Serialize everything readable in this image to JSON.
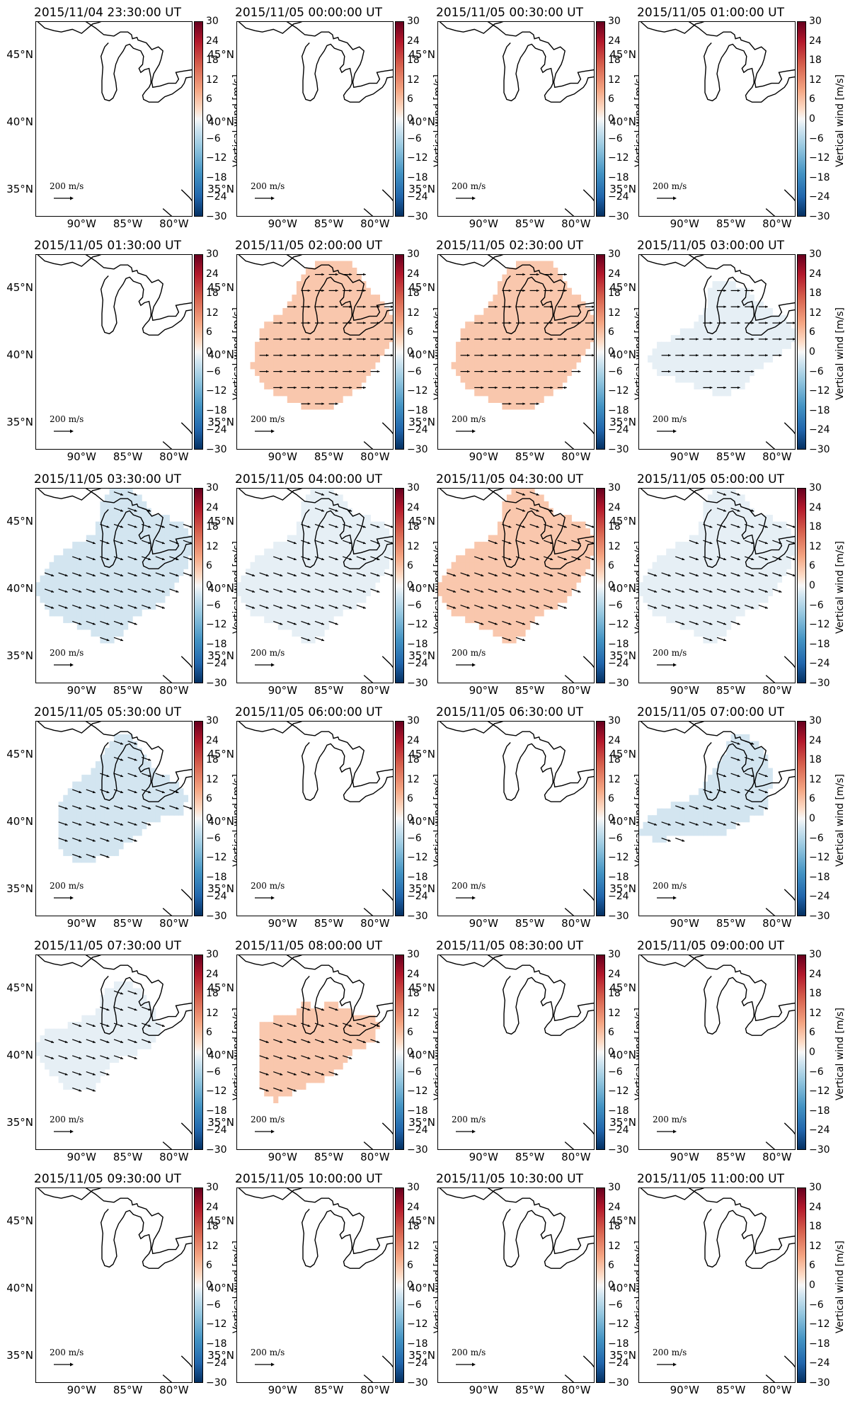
{
  "figure": {
    "colorbar_label": "Vertical wind [m/s]",
    "colorbar_ticks": [
      "30",
      "24",
      "18",
      "12",
      "6",
      "0",
      "−6",
      "−12",
      "−18",
      "−24",
      "−30"
    ],
    "lat_labels": [
      "45°N",
      "40°N",
      "35°N"
    ],
    "lon_labels": [
      "90°W",
      "85°W",
      "80°W"
    ],
    "reference_vector": "200 m/s",
    "colors": {
      "positive_weak": "#f9c7ad",
      "negative_weak_light": "#e6eff5",
      "negative_weak": "#d3e5f0"
    }
  },
  "chart_data": {
    "type": "heatmap",
    "variable": "Vertical wind [m/s]",
    "colorbar_range": [
      -30,
      30
    ],
    "x_axis": {
      "range_deg": [
        -95,
        -78
      ],
      "ticks": [
        "90°W",
        "85°W",
        "80°W"
      ]
    },
    "y_axis": {
      "range_deg": [
        33,
        47.5
      ],
      "ticks": [
        "45°N",
        "40°N",
        "35°N"
      ]
    },
    "panels": [
      {
        "title": "2015/11/04 23:30:00 UT",
        "field": "none",
        "value_ms": null
      },
      {
        "title": "2015/11/05 00:00:00 UT",
        "field": "none",
        "value_ms": null
      },
      {
        "title": "2015/11/05 00:30:00 UT",
        "field": "none",
        "value_ms": null
      },
      {
        "title": "2015/11/05 01:00:00 UT",
        "field": "none",
        "value_ms": null
      },
      {
        "title": "2015/11/05 01:30:00 UT",
        "field": "none",
        "value_ms": null
      },
      {
        "title": "2015/11/05 02:00:00 UT",
        "field": "A",
        "value_ms": 4
      },
      {
        "title": "2015/11/05 02:30:00 UT",
        "field": "A",
        "value_ms": 4
      },
      {
        "title": "2015/11/05 03:00:00 UT",
        "field": "B",
        "value_ms": -1
      },
      {
        "title": "2015/11/05 03:30:00 UT",
        "field": "C",
        "value_ms": -3
      },
      {
        "title": "2015/11/05 04:00:00 UT",
        "field": "C",
        "value_ms": -1
      },
      {
        "title": "2015/11/05 04:30:00 UT",
        "field": "C",
        "value_ms": 4
      },
      {
        "title": "2015/11/05 05:00:00 UT",
        "field": "C",
        "value_ms": -1
      },
      {
        "title": "2015/11/05 05:30:00 UT",
        "field": "D",
        "value_ms": -2
      },
      {
        "title": "2015/11/05 06:00:00 UT",
        "field": "none",
        "value_ms": null
      },
      {
        "title": "2015/11/05 06:30:00 UT",
        "field": "none",
        "value_ms": null
      },
      {
        "title": "2015/11/05 07:00:00 UT",
        "field": "E",
        "value_ms": -2
      },
      {
        "title": "2015/11/05 07:30:00 UT",
        "field": "F",
        "value_ms": -1
      },
      {
        "title": "2015/11/05 08:00:00 UT",
        "field": "G",
        "value_ms": 4
      },
      {
        "title": "2015/11/05 08:30:00 UT",
        "field": "none",
        "value_ms": null
      },
      {
        "title": "2015/11/05 09:00:00 UT",
        "field": "none",
        "value_ms": null
      },
      {
        "title": "2015/11/05 09:30:00 UT",
        "field": "none",
        "value_ms": null
      },
      {
        "title": "2015/11/05 10:00:00 UT",
        "field": "none",
        "value_ms": null
      },
      {
        "title": "2015/11/05 10:30:00 UT",
        "field": "none",
        "value_ms": null
      },
      {
        "title": "2015/11/05 11:00:00 UT",
        "field": "none",
        "value_ms": null
      }
    ]
  }
}
